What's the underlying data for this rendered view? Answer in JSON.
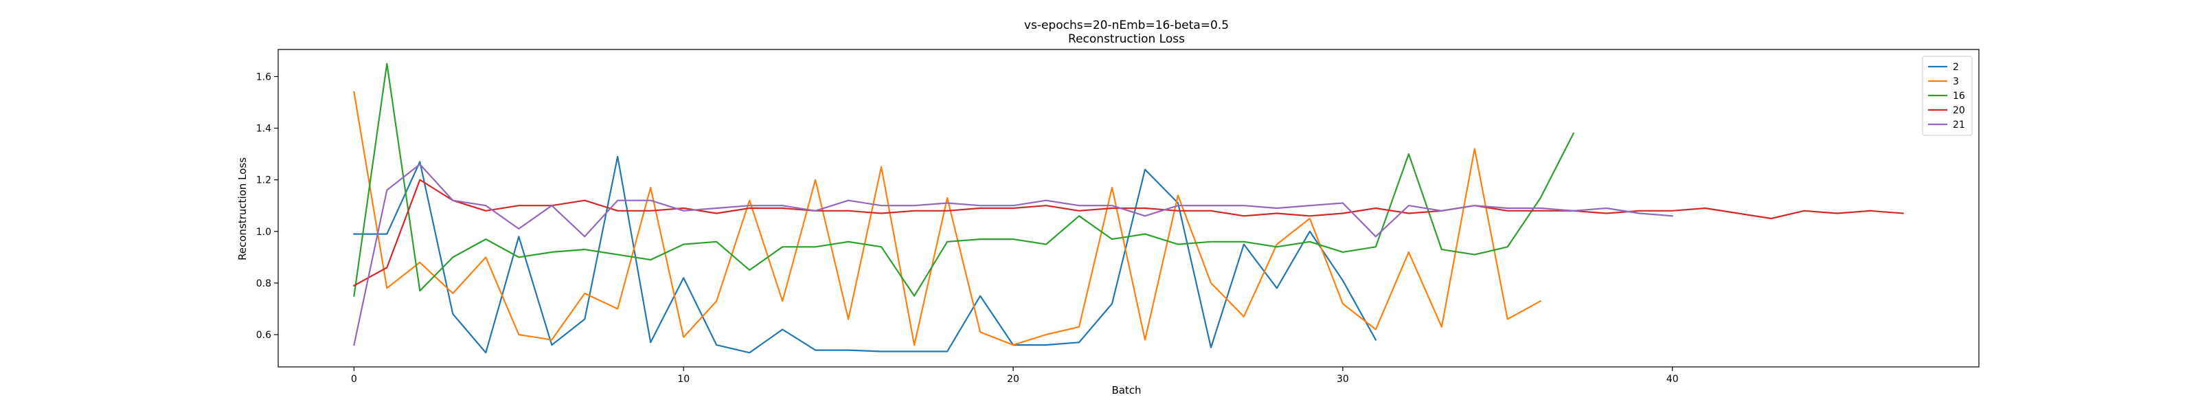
{
  "chart_data": {
    "type": "line",
    "title": "vs-epochs=20-nEmb=16-beta=0.5",
    "subtitle": "Reconstruction Loss",
    "xlabel": "Batch",
    "ylabel": "Reconstruction Loss",
    "xlim": [
      -2.3,
      49.3
    ],
    "ylim": [
      0.475,
      1.705
    ],
    "xticks": [
      0,
      10,
      20,
      30,
      40
    ],
    "yticks": [
      0.6,
      0.8,
      1.0,
      1.2,
      1.4,
      1.6
    ],
    "xtick_labels": [
      "0",
      "10",
      "20",
      "30",
      "40"
    ],
    "ytick_labels": [
      "0.6",
      "0.8",
      "1.0",
      "1.2",
      "1.4",
      "1.6"
    ],
    "grid": false,
    "legend_position": "top-right",
    "series": [
      {
        "name": "2",
        "color": "#1f77b4",
        "values": [
          0.99,
          0.99,
          1.27,
          0.68,
          0.53,
          0.98,
          0.56,
          0.66,
          1.29,
          0.57,
          0.82,
          0.56,
          0.53,
          0.62,
          0.54,
          0.54,
          0.535,
          0.535,
          0.535,
          0.75,
          0.56,
          0.56,
          0.57,
          0.72,
          1.24,
          1.11,
          0.55,
          0.95,
          0.78,
          1.0,
          0.81,
          0.58
        ]
      },
      {
        "name": "3",
        "color": "#ff7f0e",
        "values": [
          1.54,
          0.78,
          0.88,
          0.76,
          0.9,
          0.6,
          0.58,
          0.76,
          0.7,
          1.17,
          0.59,
          0.73,
          1.12,
          0.73,
          1.2,
          0.66,
          1.25,
          0.56,
          1.13,
          0.61,
          0.56,
          0.6,
          0.63,
          1.17,
          0.58,
          1.14,
          0.8,
          0.67,
          0.95,
          1.05,
          0.72,
          0.62,
          0.92,
          0.63,
          1.32,
          0.66,
          0.73
        ]
      },
      {
        "name": "16",
        "color": "#2ca02c",
        "values": [
          0.75,
          1.65,
          0.77,
          0.9,
          0.97,
          0.9,
          0.92,
          0.93,
          0.91,
          0.89,
          0.95,
          0.96,
          0.85,
          0.94,
          0.94,
          0.96,
          0.94,
          0.75,
          0.96,
          0.97,
          0.97,
          0.95,
          1.06,
          0.97,
          0.99,
          0.95,
          0.96,
          0.96,
          0.94,
          0.96,
          0.92,
          0.94,
          1.3,
          0.93,
          0.91,
          0.94,
          1.13,
          1.38
        ]
      },
      {
        "name": "20",
        "color": "#d62728",
        "values": [
          0.79,
          0.86,
          1.2,
          1.12,
          1.08,
          1.1,
          1.1,
          1.12,
          1.08,
          1.08,
          1.09,
          1.07,
          1.09,
          1.09,
          1.08,
          1.08,
          1.07,
          1.08,
          1.08,
          1.09,
          1.09,
          1.1,
          1.08,
          1.09,
          1.09,
          1.08,
          1.08,
          1.06,
          1.07,
          1.06,
          1.07,
          1.09,
          1.07,
          1.08,
          1.1,
          1.08,
          1.08,
          1.08,
          1.07,
          1.08,
          1.08,
          1.09,
          1.07,
          1.05,
          1.08,
          1.07,
          1.08,
          1.07
        ]
      },
      {
        "name": "21",
        "color": "#9467bd",
        "values": [
          0.56,
          1.16,
          1.26,
          1.12,
          1.1,
          1.01,
          1.1,
          0.98,
          1.12,
          1.12,
          1.08,
          1.09,
          1.1,
          1.1,
          1.08,
          1.12,
          1.1,
          1.1,
          1.11,
          1.1,
          1.1,
          1.12,
          1.1,
          1.1,
          1.06,
          1.1,
          1.1,
          1.1,
          1.09,
          1.1,
          1.11,
          0.98,
          1.1,
          1.08,
          1.1,
          1.09,
          1.09,
          1.08,
          1.09,
          1.07,
          1.06
        ]
      }
    ]
  }
}
